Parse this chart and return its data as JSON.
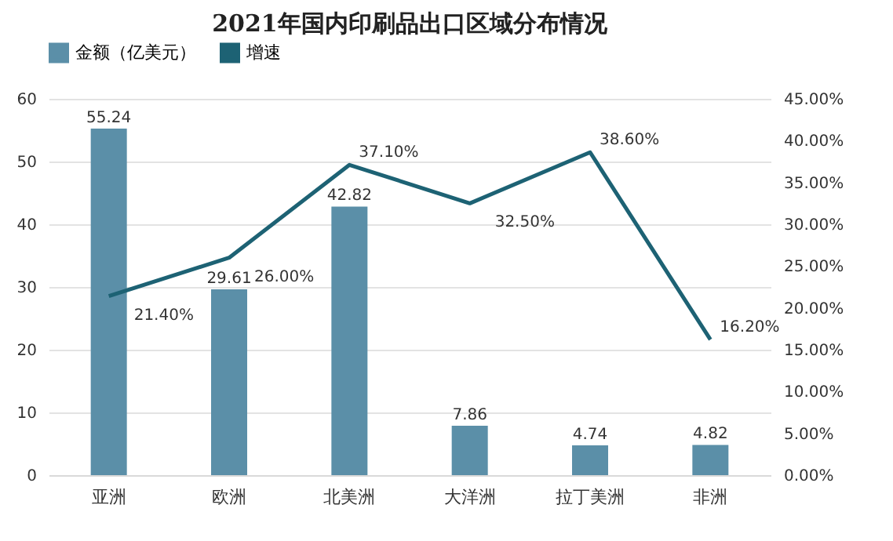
{
  "chart_data": {
    "type": "bar",
    "title": "2021年国内印刷品出口区域分布情况",
    "categories": [
      "亚洲",
      "欧洲",
      "北美洲",
      "大洋洲",
      "拉丁美洲",
      "非洲"
    ],
    "series": [
      {
        "name": "金额（亿美元）",
        "color": "#5b8fa8",
        "values": [
          55.24,
          29.61,
          42.82,
          7.86,
          4.74,
          4.82
        ],
        "value_labels": [
          "55.24",
          "29.61",
          "42.82",
          "7.86",
          "4.74",
          "4.82"
        ]
      },
      {
        "name": "增速",
        "type": "line",
        "axis": "y2",
        "color": "#1d6274",
        "values": [
          21.4,
          26.0,
          37.1,
          32.5,
          38.6,
          16.2
        ],
        "value_labels": [
          "21.40%",
          "26.00%",
          "37.10%",
          "32.50%",
          "38.60%",
          "16.20%"
        ]
      }
    ],
    "ylim": [
      0,
      60
    ],
    "yticks": [
      0,
      10,
      20,
      30,
      40,
      50,
      60
    ],
    "y2lim": [
      0,
      45
    ],
    "y2ticks": [
      {
        "value": 0,
        "label": "0.00%"
      },
      {
        "value": 5,
        "label": "5.00%"
      },
      {
        "value": 10,
        "label": "10.00%"
      },
      {
        "value": 15,
        "label": "15.00%"
      },
      {
        "value": 20,
        "label": "20.00%"
      },
      {
        "value": 25,
        "label": "25.00%"
      },
      {
        "value": 30,
        "label": "30.00%"
      },
      {
        "value": 35,
        "label": "35.00%"
      },
      {
        "value": 40,
        "label": "40.00%"
      },
      {
        "value": 45,
        "label": "45.00%"
      }
    ],
    "grid": "y",
    "legend": "top",
    "marker": "none",
    "line_style": "solid"
  }
}
